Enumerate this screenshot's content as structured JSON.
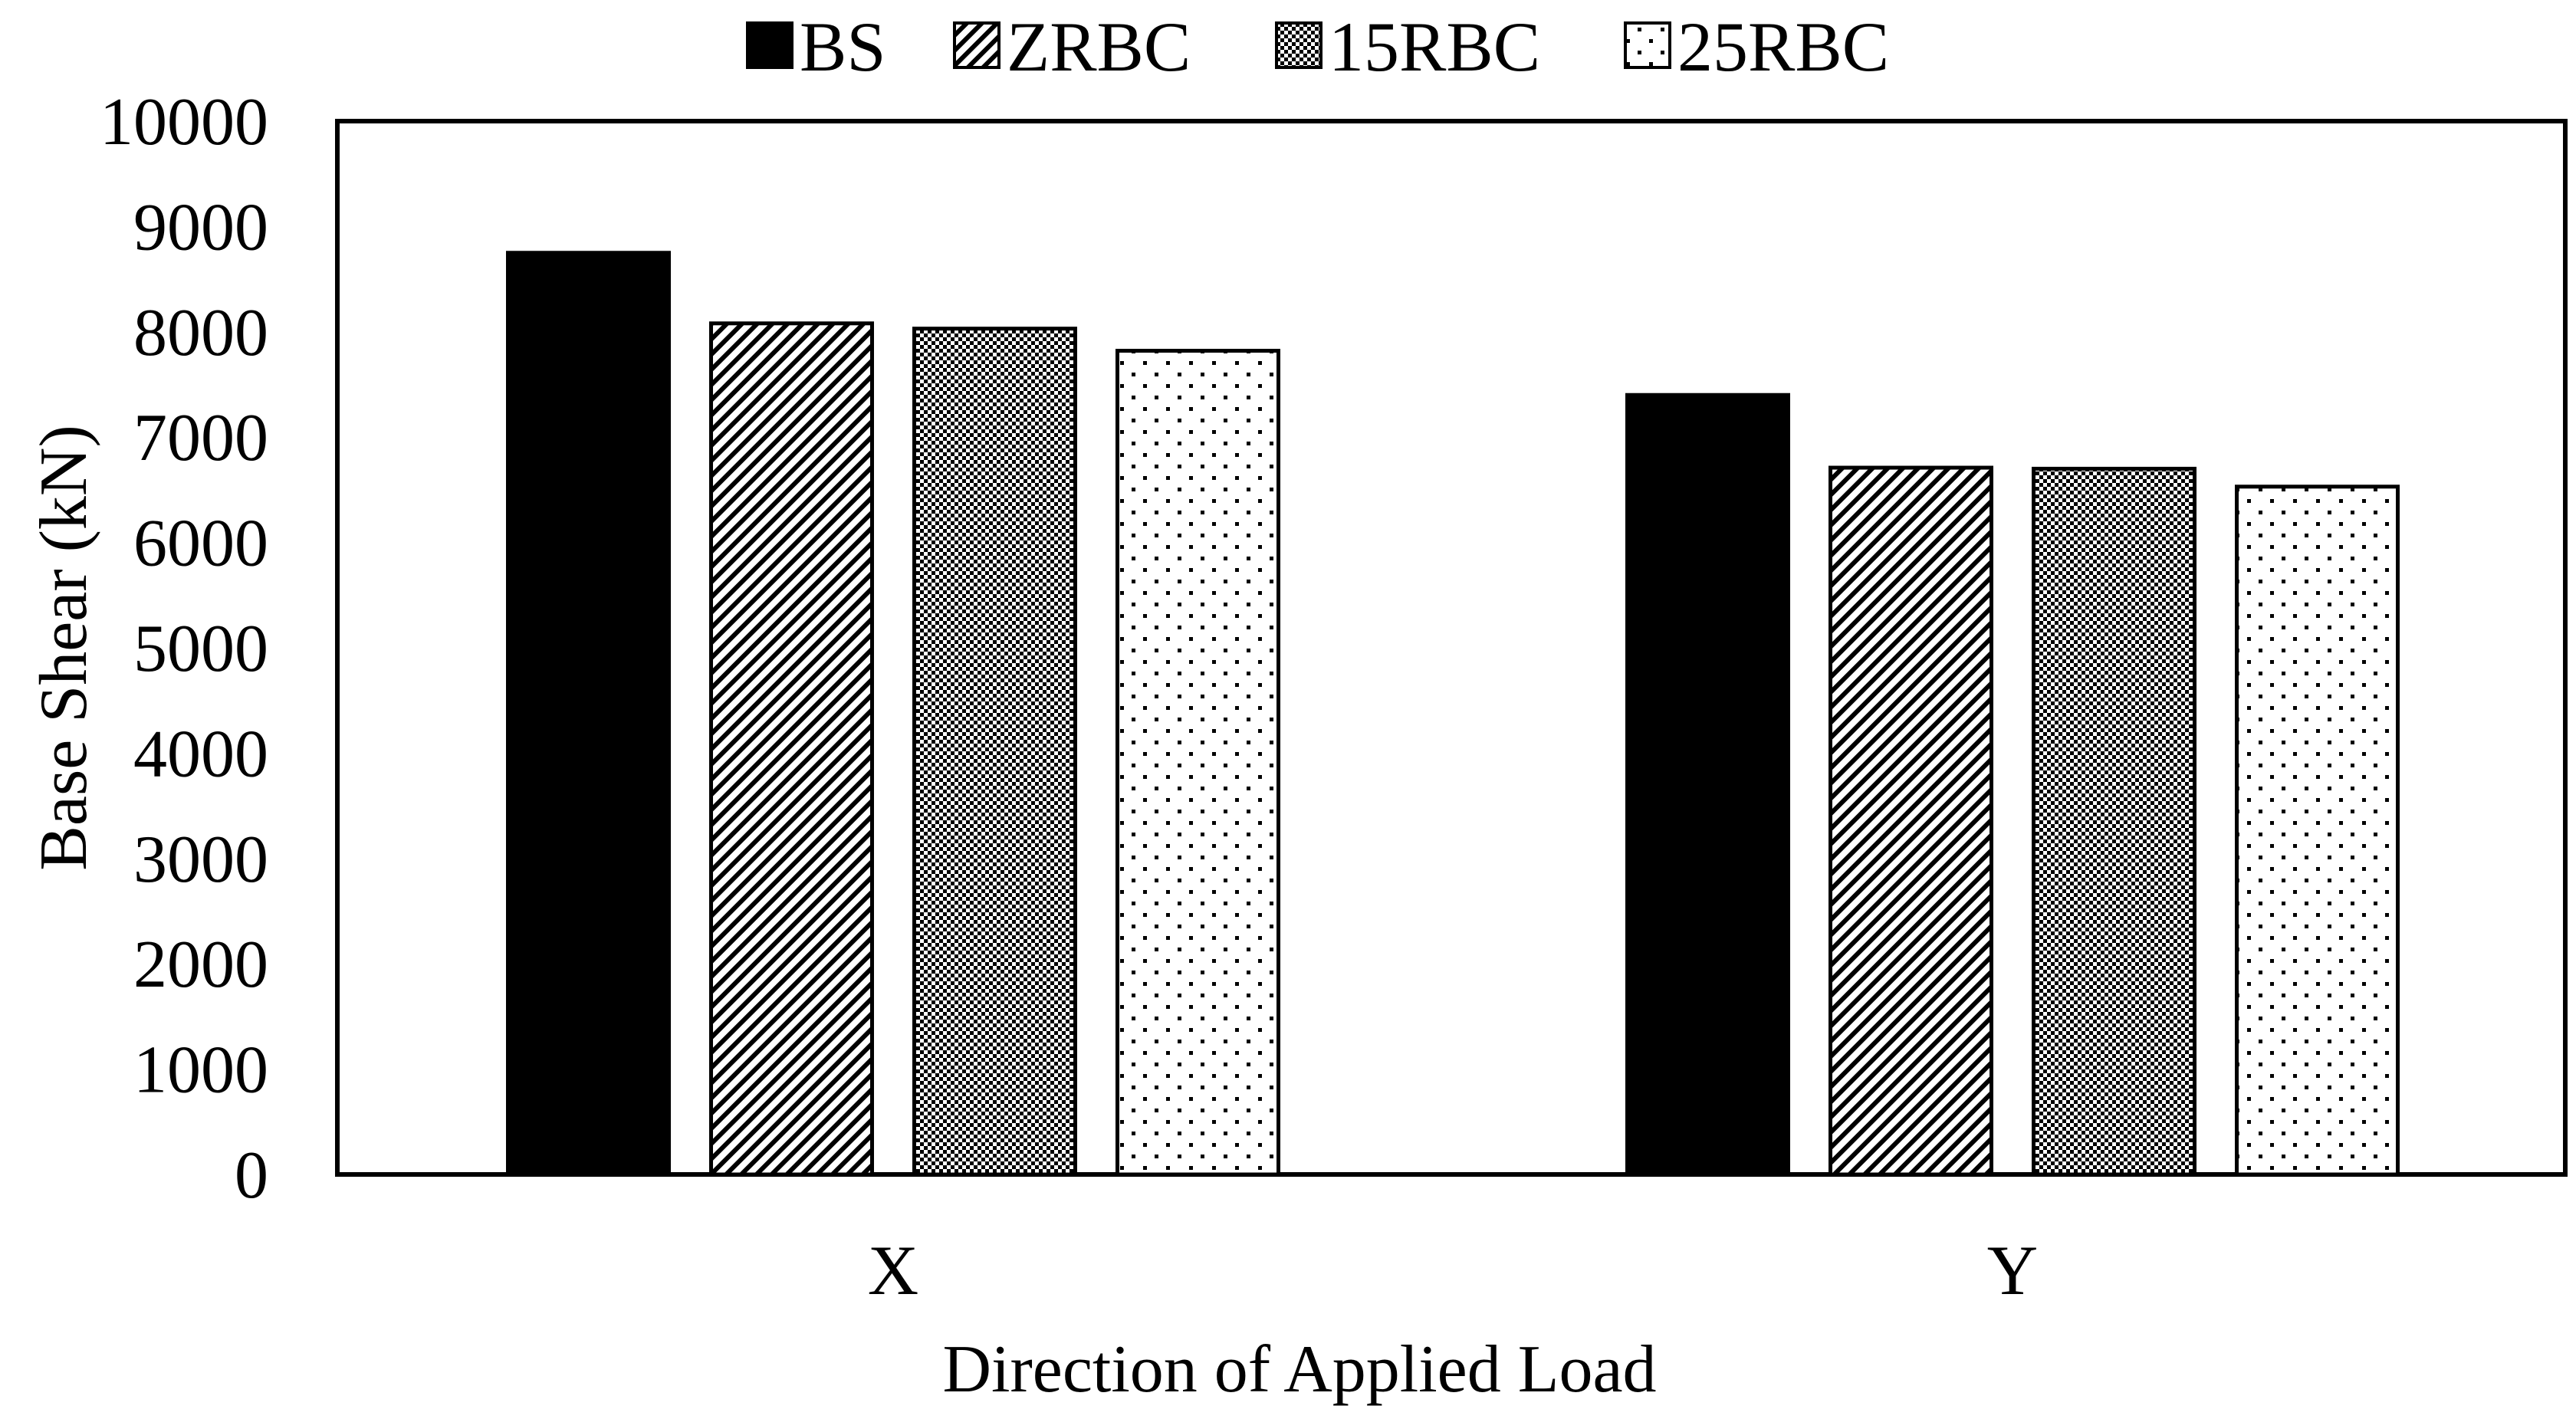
{
  "chart_data": {
    "type": "bar",
    "title": "",
    "xlabel": "Direction of Applied Load",
    "ylabel": "Base Shear (kN)",
    "categories": [
      "X",
      "Y"
    ],
    "series": [
      {
        "name": "BS",
        "values": [
          8750,
          7400
        ],
        "pattern": "solid"
      },
      {
        "name": "ZRBC",
        "values": [
          8080,
          6710
        ],
        "pattern": "diagonal"
      },
      {
        "name": "15RBC",
        "values": [
          8030,
          6700
        ],
        "pattern": "checker"
      },
      {
        "name": "25RBC",
        "values": [
          7820,
          6530
        ],
        "pattern": "dots"
      }
    ],
    "ylim": [
      0,
      10000
    ],
    "yticks": [
      0,
      1000,
      2000,
      3000,
      4000,
      5000,
      6000,
      7000,
      8000,
      9000,
      10000
    ],
    "grid": false,
    "legend_position": "top-center",
    "colors": {
      "bar_fill": "#000000",
      "background": "#ffffff",
      "stroke": "#000000"
    }
  }
}
